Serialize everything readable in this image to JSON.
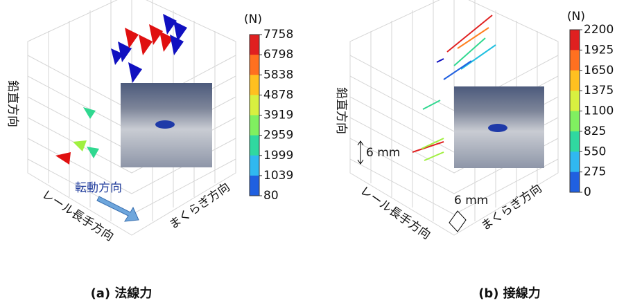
{
  "panel_a": {
    "caption": "(a) 法線力",
    "vertical_axis": "鉛直方向",
    "rail_axis": "レール長手方向",
    "sleeper_axis": "まくらぎ方向",
    "rolling_direction": "転動方向",
    "colorbar": {
      "unit": "(N)",
      "ticks": [
        7758,
        6798,
        5838,
        4878,
        3919,
        2959,
        1999,
        1039,
        80
      ]
    }
  },
  "panel_b": {
    "caption": "(b) 接線力",
    "vertical_axis": "鉛直方向",
    "rail_axis": "レール長手方向",
    "sleeper_axis": "まくらぎ方向",
    "scale_vertical": "6 mm",
    "scale_horizontal": "6 mm",
    "colorbar": {
      "unit": "(N)",
      "ticks": [
        2200,
        1925,
        1650,
        1375,
        1100,
        825,
        550,
        275,
        0
      ]
    }
  }
}
